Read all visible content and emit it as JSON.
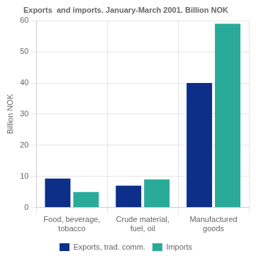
{
  "chart_data": {
    "type": "bar",
    "title": "Exports  and imports. January-March 2001. Billion NOK",
    "ylabel": "Billion NOK",
    "categories": [
      "Food, beverage,\ntobacco",
      "Crude material,\nfuel, oil",
      "Manufactured\ngoods"
    ],
    "series": [
      {
        "name": "Exports, trad. comm.",
        "color": "#0d2f8a",
        "values": [
          9.3,
          7.0,
          40.0
        ]
      },
      {
        "name": "Imports",
        "color": "#2aab9a",
        "values": [
          5.0,
          9.0,
          59.0
        ]
      }
    ],
    "ylim": [
      0,
      60
    ],
    "yticks": [
      0,
      10,
      20,
      30,
      40,
      50,
      60
    ],
    "grid": true,
    "legend": "bottom"
  }
}
